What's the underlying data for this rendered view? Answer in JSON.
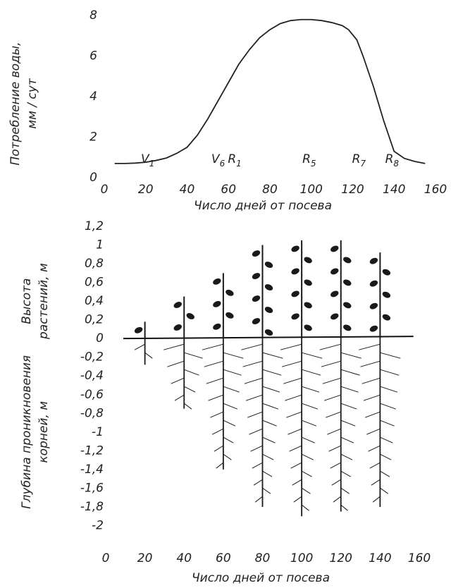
{
  "chart_data": [
    {
      "type": "line",
      "ylabel": [
        "Потребление воды,",
        "мм / сут"
      ],
      "xlabel": "Число дней от посева",
      "x": [
        5,
        10,
        15,
        20,
        25,
        30,
        35,
        40,
        45,
        50,
        55,
        60,
        65,
        70,
        75,
        80,
        85,
        90,
        95,
        100,
        105,
        110,
        115,
        118,
        122,
        125,
        130,
        135,
        140,
        145,
        150,
        155
      ],
      "series": [
        {
          "color": "#222222",
          "values": [
            0.7,
            0.7,
            0.72,
            0.76,
            0.85,
            0.97,
            1.2,
            1.5,
            2.1,
            2.9,
            3.8,
            4.7,
            5.6,
            6.3,
            6.9,
            7.3,
            7.6,
            7.75,
            7.8,
            7.8,
            7.75,
            7.65,
            7.5,
            7.3,
            6.8,
            6.0,
            4.5,
            2.8,
            1.3,
            0.95,
            0.8,
            0.7
          ]
        }
      ],
      "stages": [
        {
          "name": "V",
          "sub": "1",
          "x": 21
        },
        {
          "name": "V",
          "sub": "6",
          "x": 55
        },
        {
          "name": "R",
          "sub": "1",
          "x": 63
        },
        {
          "name": "R",
          "sub": "5",
          "x": 99
        },
        {
          "name": "R",
          "sub": "7",
          "x": 123
        },
        {
          "name": "R",
          "sub": "8",
          "x": 139
        }
      ],
      "xlim": [
        0,
        160
      ],
      "ylim": [
        0,
        8
      ],
      "xticks": [
        0,
        20,
        40,
        60,
        80,
        100,
        120,
        140,
        160
      ],
      "yticks": [
        0,
        2,
        4,
        6,
        8
      ]
    },
    {
      "type": "plants",
      "ylabel_top": [
        "Высота",
        "растений, м"
      ],
      "ylabel_bottom": [
        "Глубина проникновения",
        "корней, м"
      ],
      "xlabel": "Число дней от посева",
      "x": [
        20,
        40,
        60,
        80,
        100,
        120,
        140
      ],
      "heights": [
        0.18,
        0.45,
        0.7,
        1.0,
        1.05,
        1.05,
        0.92
      ],
      "root_depths": [
        -0.28,
        -0.75,
        -1.4,
        -1.8,
        -1.9,
        -1.85,
        -1.8
      ],
      "color": "#1a1a1a",
      "xlim": [
        0,
        160
      ],
      "ylim": [
        -2.2,
        1.2
      ],
      "xticks": [
        0,
        20,
        40,
        60,
        80,
        100,
        120,
        140,
        160
      ],
      "yticks": [
        {
          "value": 1.2,
          "label": "1,2"
        },
        1,
        {
          "value": 0.8,
          "label": "0,8"
        },
        {
          "value": 0.6,
          "label": "0,6"
        },
        {
          "value": 0.4,
          "label": "0,4"
        },
        {
          "value": 0.2,
          "label": "0,2"
        },
        0,
        {
          "value": -0.2,
          "label": "-0,2"
        },
        {
          "value": -0.4,
          "label": "-0,4"
        },
        {
          "value": -0.6,
          "label": "-0,6"
        },
        {
          "value": -0.8,
          "label": "-0,8"
        },
        -1,
        {
          "value": -1.2,
          "label": "-1,2"
        },
        {
          "value": -1.4,
          "label": "-1,4"
        },
        {
          "value": -1.6,
          "label": "-1,6"
        },
        {
          "value": -1.8,
          "label": "-1,8"
        },
        -2
      ]
    }
  ]
}
